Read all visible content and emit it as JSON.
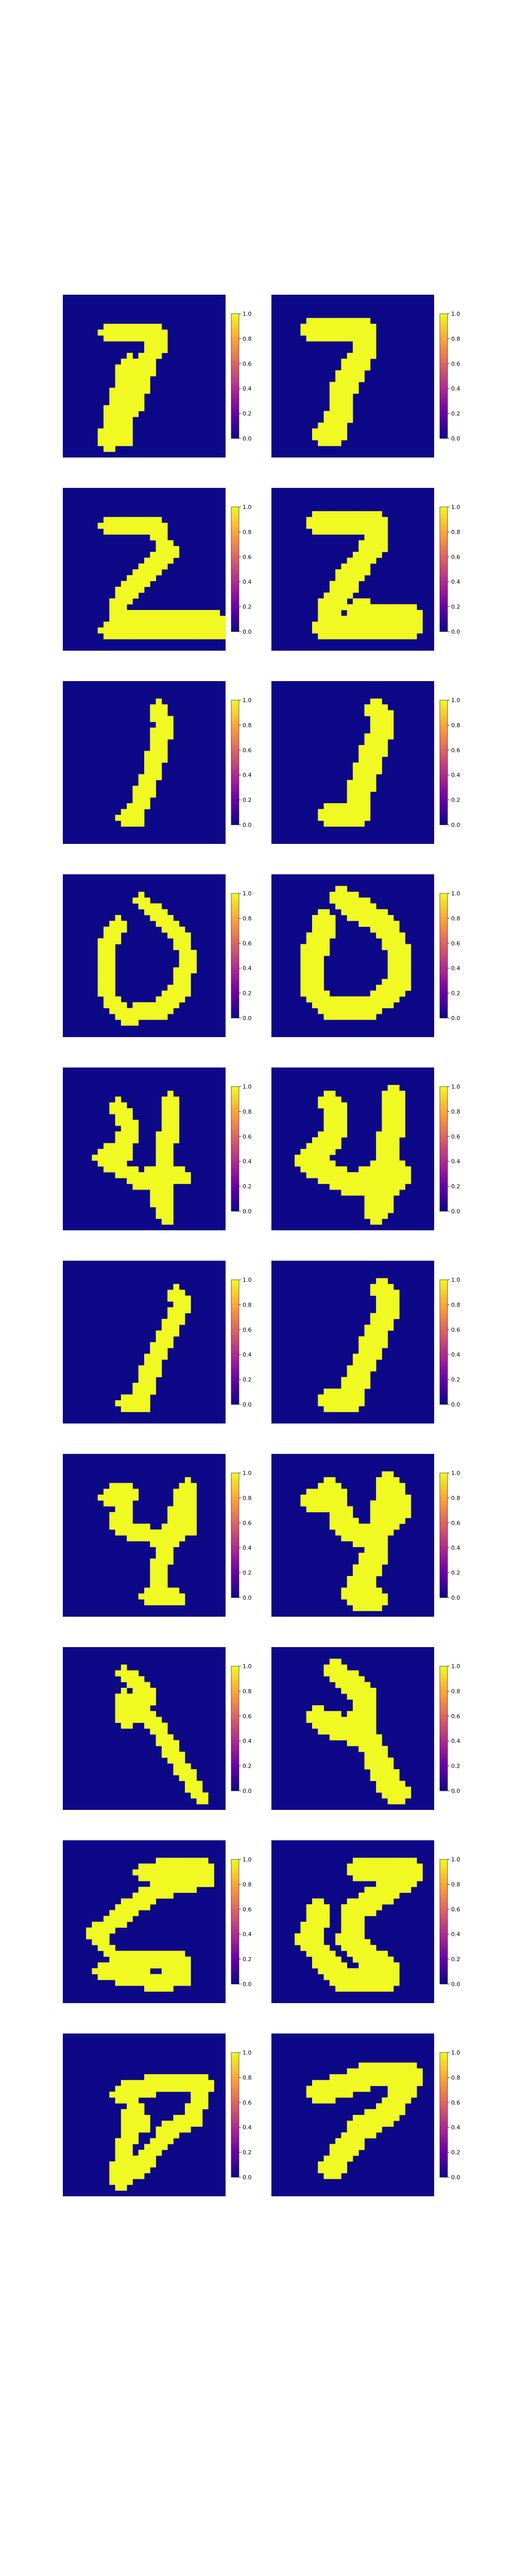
{
  "colors": {
    "background": "#0d0887",
    "foreground": "#f0f921",
    "colorbar_stops": [
      "#0d0887",
      "#6a00a8",
      "#b12a90",
      "#e16462",
      "#fca636",
      "#f0f921"
    ]
  },
  "colorbar_ticks": {
    "left": [
      "0.0",
      "0.2",
      "0.4",
      "0.6",
      "0.8",
      "1.0"
    ],
    "right": [
      "0.0",
      "0.2",
      "0.4",
      "0.6",
      "0.8",
      "1.0"
    ]
  },
  "chart_data": {
    "type": "heatmap",
    "title": "",
    "value_range": [
      0,
      1
    ],
    "colormap": "plasma",
    "grid_size": 28,
    "layout": "10 rows x 2 columns of binary digit images, each with a colorbar",
    "pairs": [
      {
        "digit": "7",
        "left": {
          "shape": "seven",
          "rect": [
            7,
            6,
            16,
            13
          ],
          "pts": [
            [
              7,
              6
            ],
            [
              16,
              6
            ],
            [
              16,
              8
            ],
            [
              14,
              11
            ],
            [
              13,
              15
            ],
            [
              12,
              18
            ],
            [
              10,
              21
            ],
            [
              10,
              24
            ],
            [
              7,
              25
            ],
            [
              11,
              11
            ]
          ]
        },
        "right": {
          "shape": "seven_thick",
          "rect": [
            7,
            6,
            16,
            13
          ],
          "pts": [
            [
              7,
              6
            ],
            [
              16,
              6
            ],
            [
              16,
              9
            ],
            [
              14,
              12
            ],
            [
              12,
              16
            ],
            [
              11,
              21
            ],
            [
              10,
              24
            ],
            [
              9,
              24
            ]
          ]
        }
      },
      {
        "digit": "2",
        "left": {
          "shape": "two",
          "pts": [
            [
              7,
              6
            ],
            [
              16,
              6
            ],
            [
              16,
              8
            ],
            [
              18,
              10
            ],
            [
              15,
              13
            ],
            [
              11,
              17
            ],
            [
              9,
              20
            ],
            [
              9,
              22
            ],
            [
              26,
              22
            ],
            [
              26,
              24
            ],
            [
              7,
              24
            ]
          ]
        },
        "right": {
          "shape": "two_blob",
          "pts": [
            [
              8,
              6
            ],
            [
              18,
              6
            ],
            [
              17,
              10
            ],
            [
              13,
              15
            ],
            [
              10,
              20
            ],
            [
              9,
              24
            ],
            [
              24,
              24
            ],
            [
              24,
              22
            ],
            [
              15,
              21
            ]
          ]
        }
      },
      {
        "digit": "1",
        "left": {
          "shape": "one",
          "pts": [
            [
              16,
              4
            ],
            [
              17,
              7
            ],
            [
              15,
              15
            ],
            [
              13,
              20
            ],
            [
              12,
              23
            ],
            [
              10,
              23
            ]
          ]
        },
        "right": {
          "shape": "one_thin",
          "pts": [
            [
              18,
              5
            ],
            [
              19,
              7
            ],
            [
              17,
              12
            ],
            [
              15,
              18
            ],
            [
              14,
              23
            ],
            [
              10,
              23
            ]
          ]
        }
      },
      {
        "digit": "0",
        "left": {
          "shape": "zero",
          "pts": [
            [
              13,
              4
            ],
            [
              20,
              10
            ],
            [
              21,
              14
            ],
            [
              20,
              19
            ],
            [
              16,
              23
            ],
            [
              10,
              24
            ],
            [
              7,
              20
            ],
            [
              7,
              12
            ],
            [
              9,
              8
            ]
          ]
        },
        "right": {
          "shape": "zero_ring",
          "pts": [
            [
              12,
              4
            ],
            [
              19,
              8
            ],
            [
              22,
              14
            ],
            [
              21,
              19
            ],
            [
              16,
              23
            ],
            [
              10,
              23
            ],
            [
              7,
              20
            ],
            [
              7,
              13
            ],
            [
              9,
              8
            ]
          ]
        }
      },
      {
        "digit": "4",
        "left": {
          "shape": "four",
          "pts": [
            [
              9,
              6
            ],
            [
              11,
              10
            ],
            [
              10,
              14
            ],
            [
              6,
              15
            ],
            [
              13,
              19
            ],
            [
              15,
              18
            ],
            [
              20,
              18
            ],
            [
              16,
              19
            ],
            [
              17,
              25
            ],
            [
              18,
              5
            ]
          ]
        },
        "right": {
          "shape": "four_fat",
          "pts": [
            [
              10,
              6
            ],
            [
              11,
              10
            ],
            [
              8,
              14
            ],
            [
              6,
              16
            ],
            [
              14,
              20
            ],
            [
              19,
              17
            ],
            [
              22,
              18
            ],
            [
              18,
              22
            ],
            [
              18,
              25
            ],
            [
              21,
              5
            ]
          ]
        }
      },
      {
        "digit": "1",
        "left": {
          "shape": "one_b",
          "pts": [
            [
              19,
              5
            ],
            [
              20,
              7
            ],
            [
              16,
              15
            ],
            [
              14,
              20
            ],
            [
              13,
              24
            ],
            [
              10,
              24
            ]
          ]
        },
        "right": {
          "shape": "one_b2",
          "pts": [
            [
              19,
              5
            ],
            [
              20,
              7
            ],
            [
              17,
              14
            ],
            [
              14,
              21
            ],
            [
              13,
              24
            ],
            [
              10,
              24
            ]
          ]
        }
      },
      {
        "digit": "4",
        "left": {
          "shape": "four_b",
          "pts": [
            [
              7,
              7
            ],
            [
              11,
              6
            ],
            [
              9,
              12
            ],
            [
              16,
              14
            ],
            [
              21,
              12
            ],
            [
              21,
              5
            ],
            [
              16,
              20
            ],
            [
              16,
              24
            ],
            [
              14,
              24
            ],
            [
              19,
              24
            ]
          ]
        },
        "right": {
          "shape": "four_b2",
          "pts": [
            [
              7,
              8
            ],
            [
              10,
              6
            ],
            [
              12,
              12
            ],
            [
              16,
              14
            ],
            [
              22,
              9
            ],
            [
              20,
              5
            ],
            [
              17,
              18
            ],
            [
              14,
              24
            ],
            [
              18,
              25
            ]
          ]
        }
      },
      {
        "digit": "9",
        "left": {
          "shape": "nine_a",
          "pts": [
            [
              10,
              4
            ],
            [
              14,
              7
            ],
            [
              13,
              11
            ],
            [
              10,
              12
            ],
            [
              10,
              8
            ],
            [
              15,
              12
            ],
            [
              23,
              25
            ]
          ]
        },
        "right": {
          "shape": "nine_a2",
          "pts": [
            [
              11,
              4
            ],
            [
              15,
              7
            ],
            [
              16,
              12
            ],
            [
              12,
              14
            ],
            [
              8,
              12
            ],
            [
              16,
              15
            ],
            [
              20,
              24
            ],
            [
              22,
              25
            ]
          ]
        }
      },
      {
        "digit": "5",
        "left": {
          "shape": "five",
          "pts": [
            [
              13,
              5
            ],
            [
              24,
              4
            ],
            [
              24,
              6
            ],
            [
              16,
              8
            ],
            [
              10,
              12
            ],
            [
              5,
              16
            ],
            [
              9,
              20
            ],
            [
              20,
              20
            ],
            [
              20,
              23
            ],
            [
              16,
              24
            ],
            [
              6,
              22
            ]
          ]
        },
        "right": {
          "shape": "five_blob",
          "pts": [
            [
              15,
              5
            ],
            [
              24,
              5
            ],
            [
              20,
              8
            ],
            [
              14,
              12
            ],
            [
              13,
              17
            ],
            [
              20,
              22
            ],
            [
              19,
              24
            ],
            [
              12,
              24
            ],
            [
              6,
              17
            ],
            [
              8,
              12
            ]
          ]
        }
      },
      {
        "digit": "9",
        "left": {
          "shape": "nine_b",
          "pts": [
            [
              9,
              10
            ],
            [
              17,
              8
            ],
            [
              24,
              8
            ],
            [
              22,
              14
            ],
            [
              18,
              16
            ],
            [
              13,
              22
            ],
            [
              9,
              25
            ],
            [
              12,
              12
            ],
            [
              13,
              15
            ]
          ]
        },
        "right": {
          "shape": "nine_b2",
          "pts": [
            [
              8,
              10
            ],
            [
              16,
              7
            ],
            [
              24,
              7
            ],
            [
              20,
              13
            ],
            [
              15,
              16
            ],
            [
              12,
              20
            ],
            [
              10,
              23
            ]
          ]
        }
      }
    ]
  }
}
